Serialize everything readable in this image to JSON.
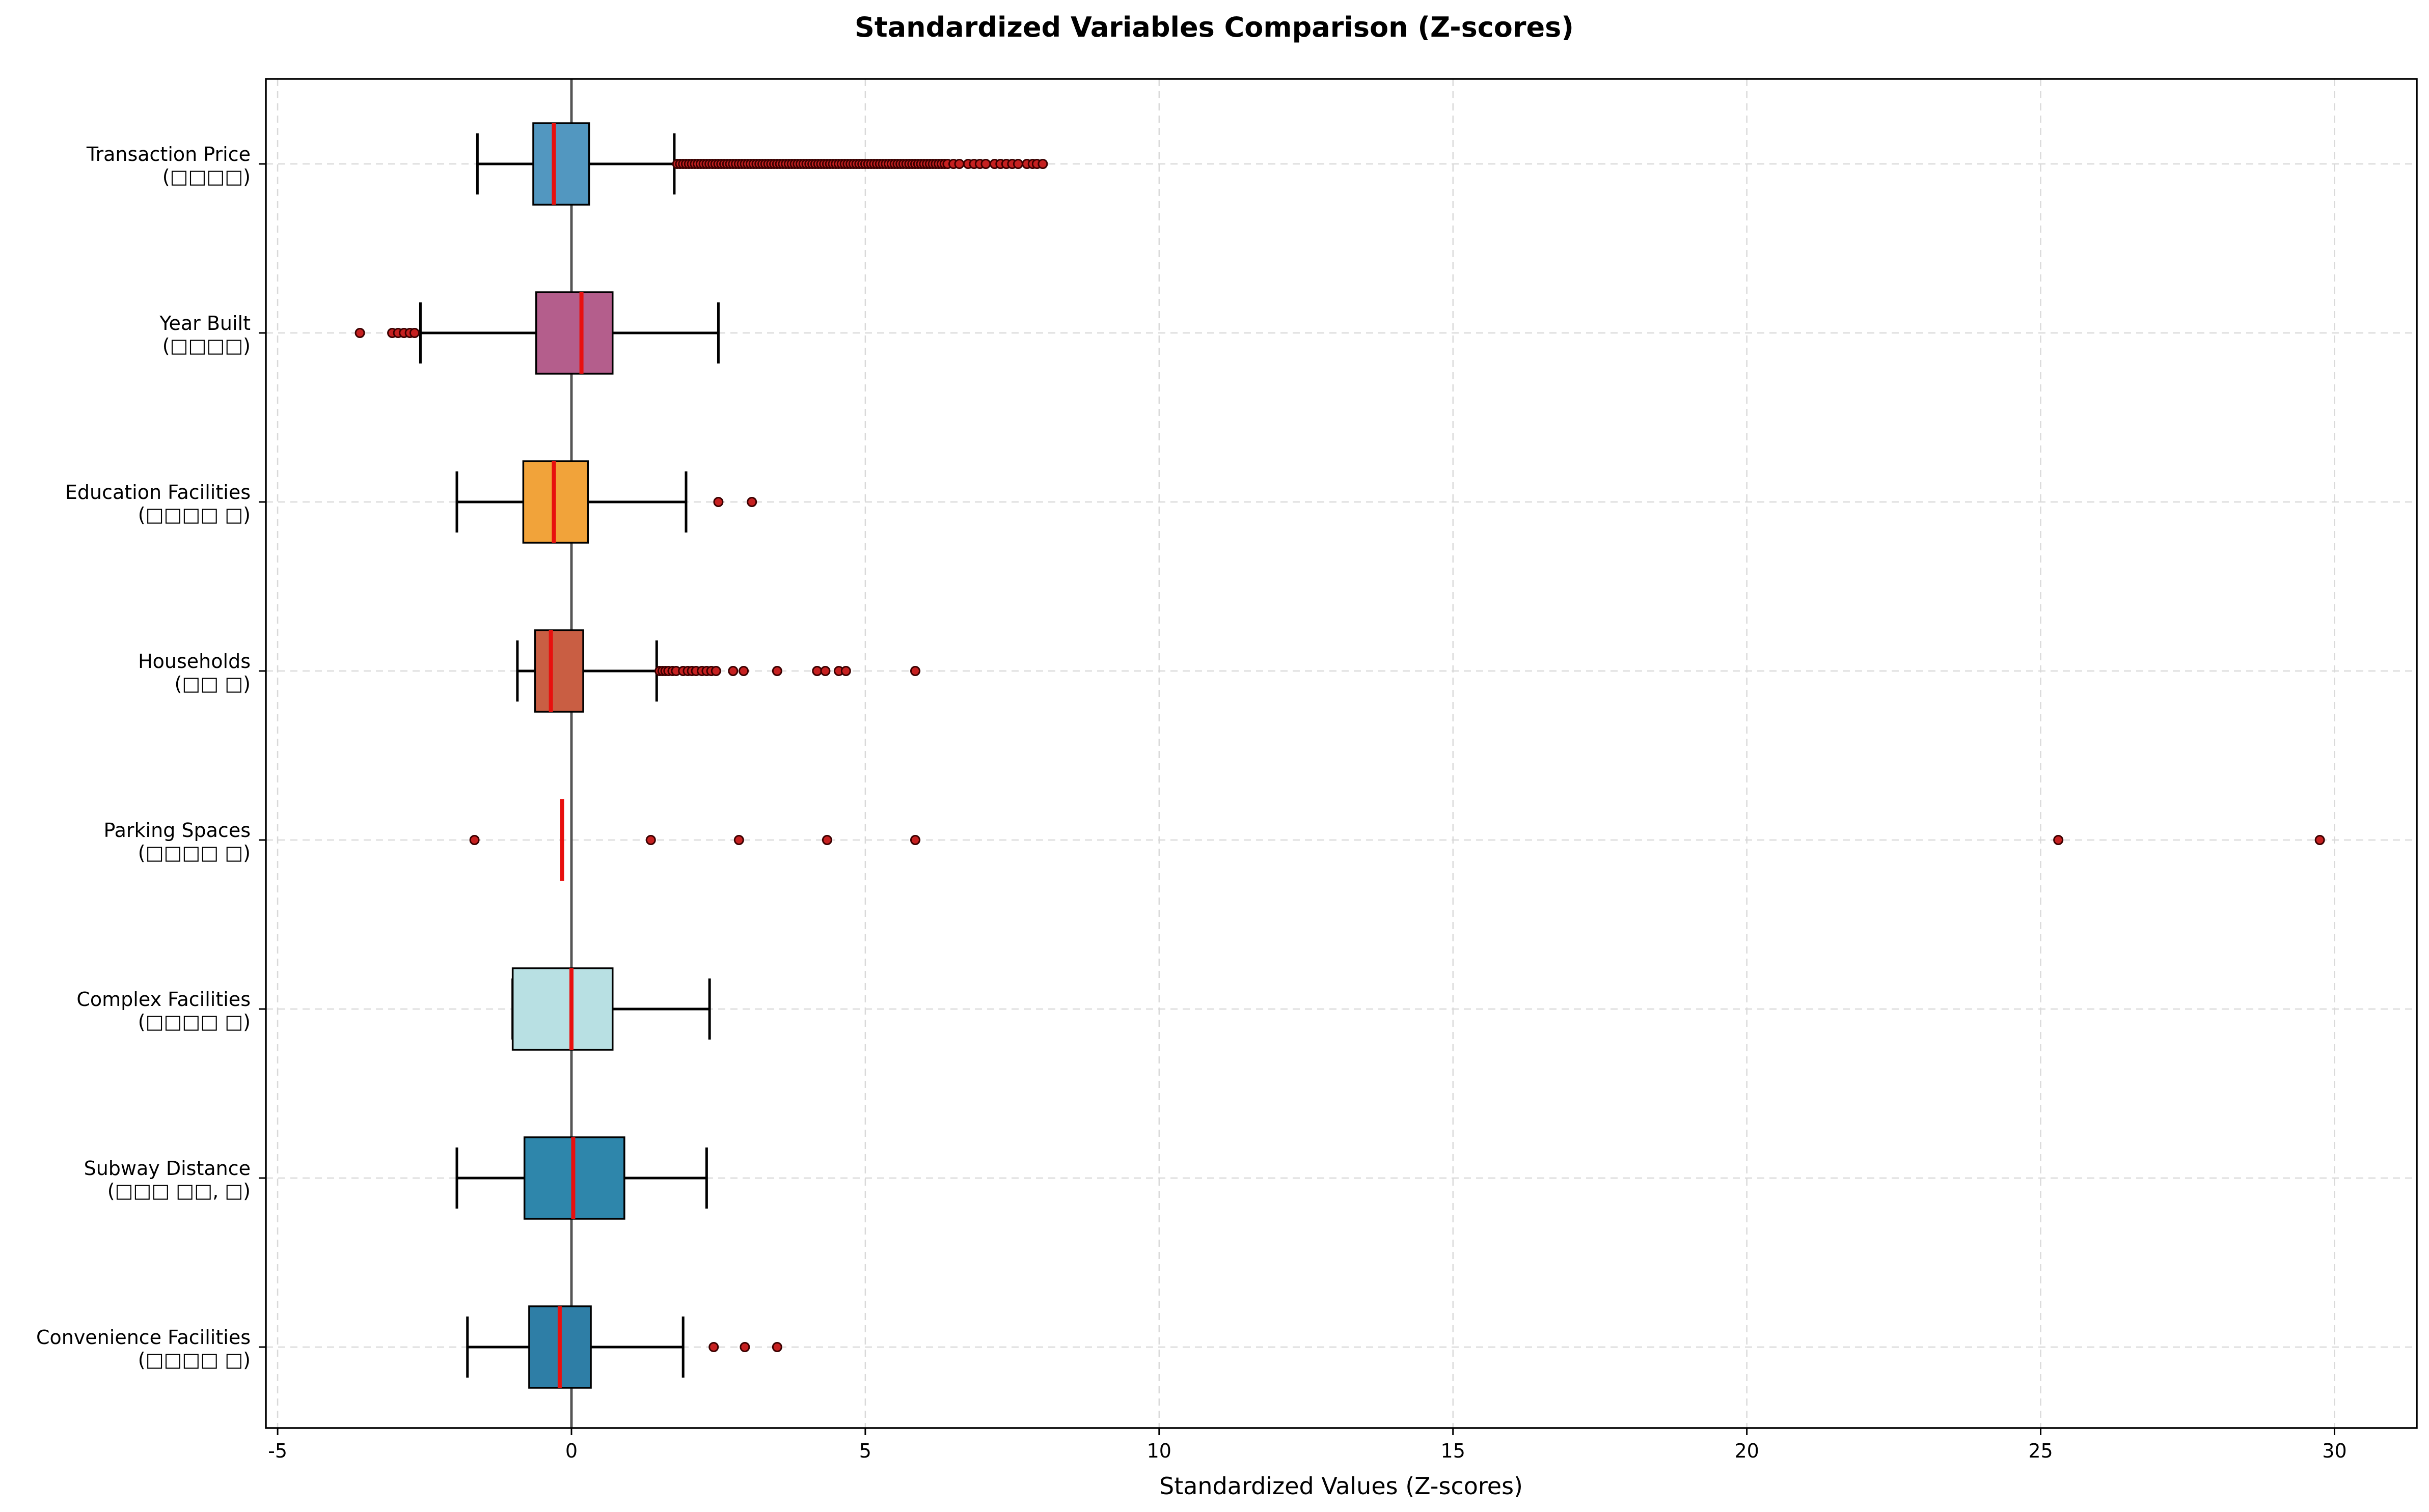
{
  "chart_data": {
    "type": "boxplot",
    "orientation": "horizontal",
    "title": "Standardized Variables Comparison (Z-scores)",
    "xlabel": "Standardized Values (Z-scores)",
    "ylabel": "",
    "xlim": [
      -5.2,
      31.4
    ],
    "xticks": [
      -5,
      0,
      5,
      10,
      15,
      20,
      25,
      30
    ],
    "grid": true,
    "reference_line_x": 0,
    "categories": [
      {
        "name": "Convenience Facilities",
        "sub": "(□□□□ □)",
        "color": "#2e7ea6",
        "q1": -0.72,
        "median": -0.2,
        "q3": 0.33,
        "whisker_low": -1.77,
        "whisker_high": 1.9,
        "outliers": [
          2.42,
          2.95,
          3.5
        ]
      },
      {
        "name": "Subway Distance",
        "sub": "(□□□ □□, □)",
        "color": "#2e86ab",
        "q1": -0.8,
        "median": 0.03,
        "q3": 0.9,
        "whisker_low": -1.95,
        "whisker_high": 2.3,
        "outliers": []
      },
      {
        "name": "Complex Facilities",
        "sub": "(□□□□ □)",
        "color": "#b8e0e3",
        "q1": -1.0,
        "median": 0.0,
        "q3": 0.7,
        "whisker_low": -1.0,
        "whisker_high": 2.35,
        "outliers": []
      },
      {
        "name": "Parking Spaces",
        "sub": "(□□□□ □)",
        "color": "#9a9a9a",
        "q1": -0.16,
        "median": -0.16,
        "q3": -0.16,
        "whisker_low": -0.16,
        "whisker_high": -0.16,
        "outliers": [
          -1.65,
          1.35,
          2.85,
          4.35,
          5.85,
          25.3,
          29.75
        ]
      },
      {
        "name": "Households",
        "sub": "(□□ □)",
        "color": "#c95e43",
        "q1": -0.62,
        "median": -0.35,
        "q3": 0.2,
        "whisker_low": -0.92,
        "whisker_high": 1.45,
        "outliers": [
          1.5,
          1.55,
          1.6,
          1.65,
          1.72,
          1.78,
          1.9,
          1.98,
          2.05,
          2.12,
          2.22,
          2.3,
          2.38,
          2.46,
          2.75,
          2.93,
          3.5,
          4.18,
          4.32,
          4.55,
          4.67,
          5.85
        ]
      },
      {
        "name": "Education Facilities",
        "sub": "(□□□□ □)",
        "color": "#f1a33a",
        "q1": -0.82,
        "median": -0.3,
        "q3": 0.28,
        "whisker_low": -1.95,
        "whisker_high": 1.95,
        "outliers": [
          2.5,
          3.07
        ]
      },
      {
        "name": "Year Built",
        "sub": "(□□□□)",
        "color": "#b45e8c",
        "q1": -0.6,
        "median": 0.17,
        "q3": 0.7,
        "whisker_low": -2.57,
        "whisker_high": 2.5,
        "outliers": [
          -3.6,
          -3.05,
          -2.95,
          -2.85,
          -2.75,
          -2.67
        ]
      },
      {
        "name": "Transaction Price",
        "sub": "(□□□□)",
        "color": "#5297c0",
        "q1": -0.65,
        "median": -0.3,
        "q3": 0.3,
        "whisker_low": -1.6,
        "whisker_high": 1.75,
        "outliers": [
          1.8,
          1.85,
          1.9,
          1.95,
          2.0,
          2.05,
          2.1,
          2.15,
          2.2,
          2.25,
          2.3,
          2.35,
          2.4,
          2.45,
          2.5,
          2.55,
          2.6,
          2.65,
          2.7,
          2.75,
          2.8,
          2.85,
          2.9,
          2.95,
          3.0,
          3.05,
          3.1,
          3.15,
          3.2,
          3.25,
          3.3,
          3.35,
          3.4,
          3.45,
          3.5,
          3.55,
          3.6,
          3.65,
          3.7,
          3.75,
          3.8,
          3.85,
          3.9,
          3.95,
          4.0,
          4.05,
          4.1,
          4.15,
          4.2,
          4.25,
          4.3,
          4.35,
          4.4,
          4.45,
          4.5,
          4.55,
          4.6,
          4.65,
          4.7,
          4.75,
          4.8,
          4.85,
          4.9,
          4.95,
          5.0,
          5.05,
          5.1,
          5.15,
          5.2,
          5.25,
          5.3,
          5.35,
          5.4,
          5.45,
          5.5,
          5.55,
          5.6,
          5.65,
          5.7,
          5.75,
          5.8,
          5.85,
          5.9,
          5.95,
          6.0,
          6.05,
          6.1,
          6.15,
          6.2,
          6.25,
          6.3,
          6.35,
          6.4,
          6.5,
          6.6,
          6.75,
          6.85,
          6.95,
          7.05,
          7.2,
          7.3,
          7.4,
          7.5,
          7.6,
          7.75,
          7.85,
          7.92,
          8.02
        ]
      }
    ]
  }
}
